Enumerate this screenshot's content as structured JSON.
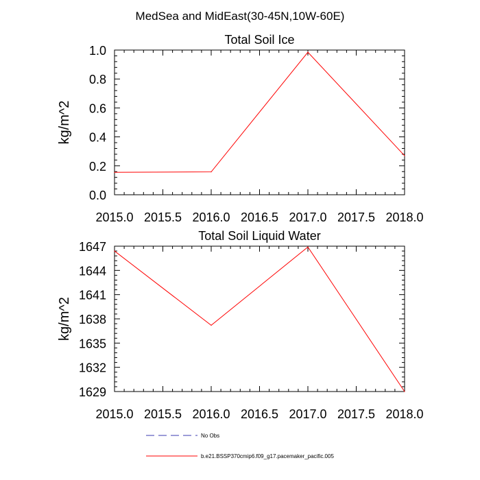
{
  "figure_title": "MedSea and MidEast(30-45N,10W-60E)",
  "colors": {
    "model_line": "#ff0000",
    "obs_line": "#3a3ab0",
    "axis": "#000000"
  },
  "chart_data": [
    {
      "type": "line",
      "title": "Total Soil Ice",
      "xlabel": "",
      "ylabel": "kg/m^2",
      "xlim": [
        2015.0,
        2018.0
      ],
      "ylim": [
        0.0,
        1.0
      ],
      "x_ticks": [
        "2015.0",
        "2015.5",
        "2016.0",
        "2016.5",
        "2017.0",
        "2017.5",
        "2018.0"
      ],
      "y_ticks": [
        "0.0",
        "0.2",
        "0.4",
        "0.6",
        "0.8",
        "1.0"
      ],
      "series": [
        {
          "name": "b.e21.BSSP370cmip6.f09_g17.pacemaker_pacific.005",
          "x": [
            2015.0,
            2016.0,
            2017.0,
            2018.0
          ],
          "y": [
            0.155,
            0.158,
            0.985,
            0.27
          ]
        }
      ]
    },
    {
      "type": "line",
      "title": "Total Soil Liquid Water",
      "xlabel": "",
      "ylabel": "kg/m^2",
      "xlim": [
        2015.0,
        2018.0
      ],
      "ylim": [
        1629,
        1647
      ],
      "x_ticks": [
        "2015.0",
        "2015.5",
        "2016.0",
        "2016.5",
        "2017.0",
        "2017.5",
        "2018.0"
      ],
      "y_ticks": [
        "1629",
        "1632",
        "1635",
        "1638",
        "1641",
        "1644",
        "1647"
      ],
      "series": [
        {
          "name": "b.e21.BSSP370cmip6.f09_g17.pacemaker_pacific.005",
          "x": [
            2015.0,
            2016.0,
            2017.0,
            2018.0
          ],
          "y": [
            1646.4,
            1637.2,
            1646.9,
            1629.0
          ]
        }
      ]
    }
  ],
  "legend": {
    "items": [
      {
        "label": "No Obs",
        "style": "dashed"
      },
      {
        "label": "b.e21.BSSP370cmip6.f09_g17.pacemaker_pacific.005",
        "style": "solid"
      }
    ]
  }
}
